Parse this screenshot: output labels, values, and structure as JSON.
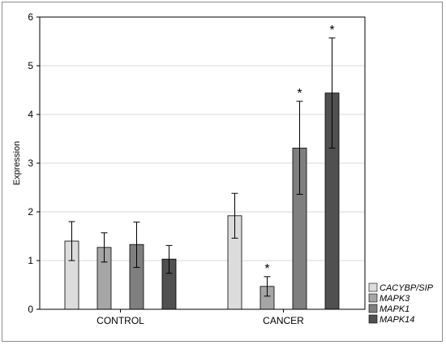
{
  "chart_data": {
    "type": "bar",
    "ylabel": "Expression",
    "xlabel": "",
    "ylim": [
      0,
      6
    ],
    "yticks": [
      0,
      1,
      2,
      3,
      4,
      5,
      6
    ],
    "grid": true,
    "legend_position": "bottom-right",
    "categories": [
      "CONTROL",
      "CANCER"
    ],
    "series": [
      {
        "name": "CACYBP/SIP",
        "color": "#dcdcdc",
        "values": [
          1.4,
          1.92
        ],
        "error_low": [
          1.0,
          1.46
        ],
        "error_high": [
          1.8,
          2.38
        ],
        "marked": [
          "",
          ""
        ]
      },
      {
        "name": "MAPK3",
        "color": "#a6a6a6",
        "values": [
          1.27,
          0.47
        ],
        "error_low": [
          0.97,
          0.27
        ],
        "error_high": [
          1.57,
          0.67
        ],
        "marked": [
          "",
          "*"
        ]
      },
      {
        "name": "MAPK1",
        "color": "#7f7f7f",
        "values": [
          1.33,
          3.31
        ],
        "error_low": [
          0.86,
          2.36
        ],
        "error_high": [
          1.79,
          4.27
        ],
        "marked": [
          "",
          "*"
        ]
      },
      {
        "name": "MAPK14",
        "color": "#505050",
        "values": [
          1.03,
          4.44
        ],
        "error_low": [
          0.74,
          3.31
        ],
        "error_high": [
          1.31,
          5.57
        ],
        "marked": [
          "",
          "*"
        ]
      }
    ]
  }
}
